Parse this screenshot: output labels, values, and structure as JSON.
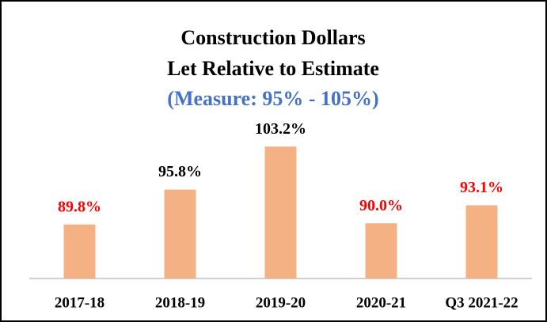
{
  "chart_data": {
    "type": "bar",
    "title": [
      "Construction Dollars",
      "Let Relative to Estimate"
    ],
    "subtitle": "(Measure: 95% - 105%)",
    "subtitle_color": "#4472c4",
    "categories": [
      "2017-18",
      "2018-19",
      "2019-20",
      "2020-21",
      "Q3 2021-22"
    ],
    "values": [
      89.8,
      95.8,
      103.2,
      90.0,
      93.1
    ],
    "value_labels": [
      "89.8%",
      "95.8%",
      "103.2%",
      "90.0%",
      "93.1%"
    ],
    "value_label_colors": [
      "#ff0000",
      "#000000",
      "#000000",
      "#ff0000",
      "#ff0000"
    ],
    "color": "#f4b183",
    "ylim": [
      80.5,
      108
    ]
  }
}
